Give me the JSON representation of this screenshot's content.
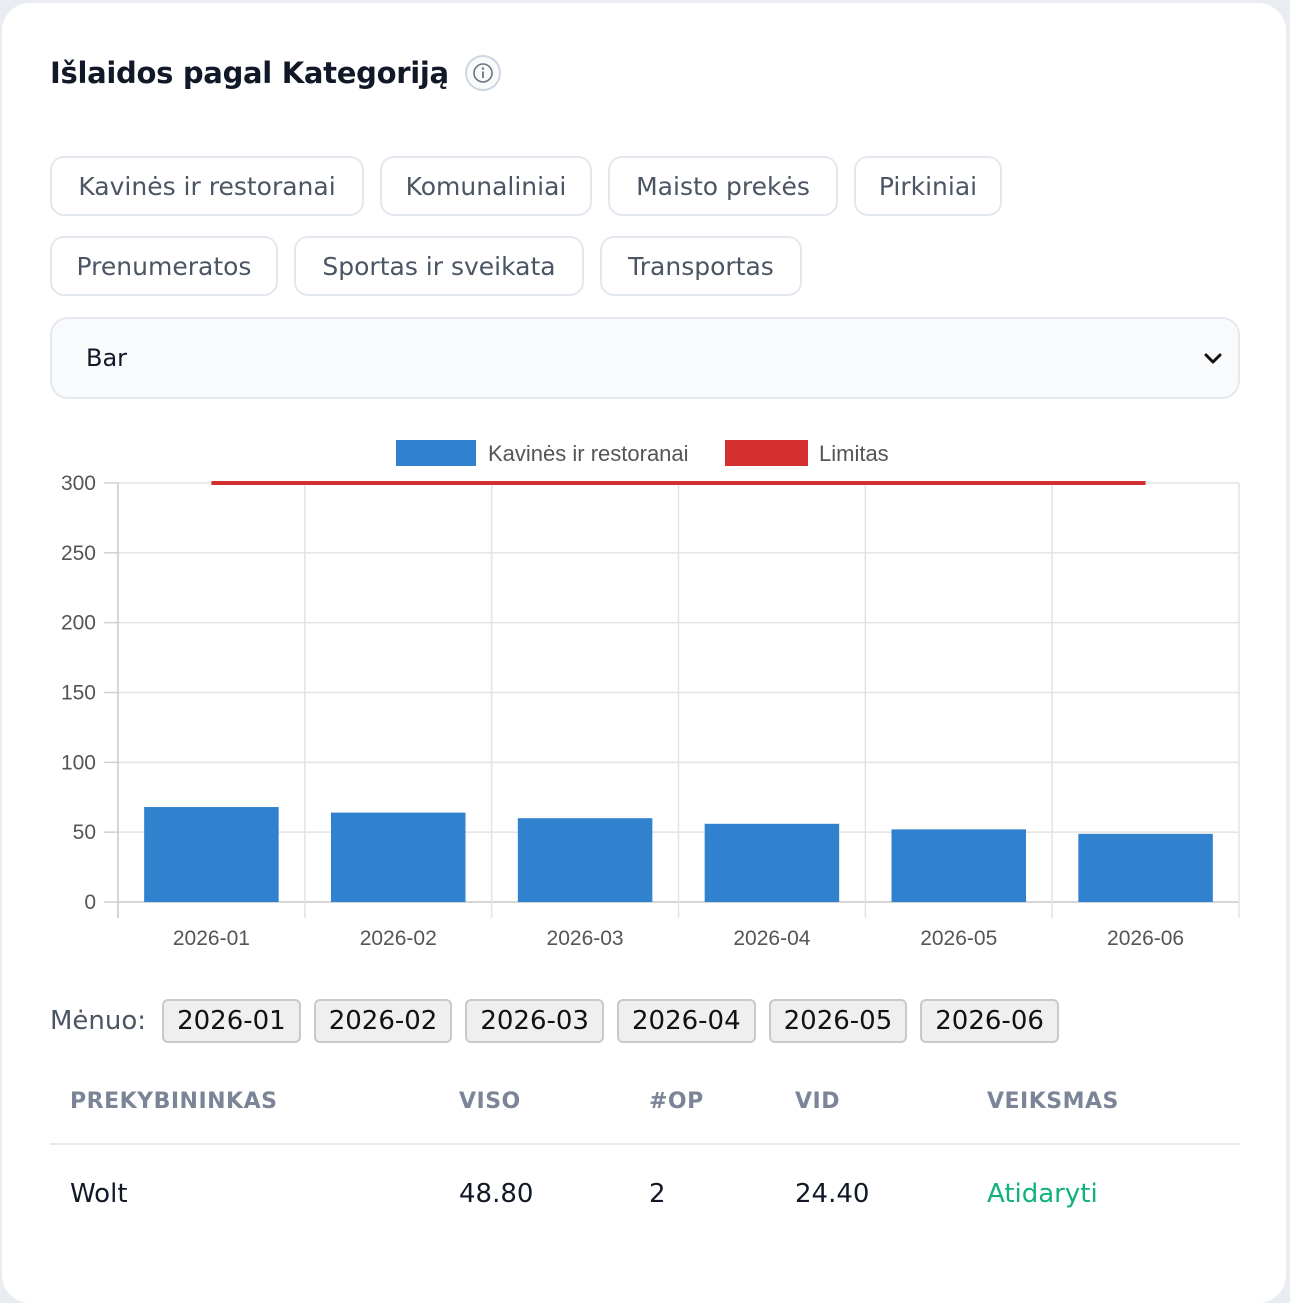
{
  "header": {
    "title": "Išlaidos pagal Kategoriją",
    "info_icon": "info-icon"
  },
  "categories": [
    "Kavinės ir restoranai",
    "Komunaliniai",
    "Maisto prekės",
    "Pirkiniai",
    "Prenumeratos",
    "Sportas ir sveikata",
    "Transportas"
  ],
  "chart_type_select": {
    "value": "Bar",
    "icon": "chevron-down-icon"
  },
  "chart_data": {
    "type": "bar",
    "categories": [
      "2026-01",
      "2026-02",
      "2026-03",
      "2026-04",
      "2026-05",
      "2026-06"
    ],
    "series": [
      {
        "name": "Kavinės ir restoranai",
        "values": [
          68,
          64,
          60,
          56,
          52,
          48.8
        ],
        "color": "#3182ce"
      },
      {
        "name": "Limitas",
        "values": [
          300,
          300,
          300,
          300,
          300,
          300
        ],
        "color": "#d32f2f",
        "kind": "line"
      }
    ],
    "ylim": [
      0,
      300
    ],
    "yticks": [
      0,
      50,
      100,
      150,
      200,
      250,
      300
    ],
    "grid": true,
    "legend": "top"
  },
  "month_filter": {
    "label": "Mėnuo:",
    "months": [
      "2026-01",
      "2026-02",
      "2026-03",
      "2026-04",
      "2026-05",
      "2026-06"
    ]
  },
  "table": {
    "headers": [
      "PREKYBININKAS",
      "VISO",
      "#OP",
      "VID",
      "VEIKSMAS"
    ],
    "rows": [
      {
        "merchant": "Wolt",
        "total": "48.80",
        "ops": "2",
        "avg": "24.40",
        "action": "Atidaryti"
      }
    ]
  }
}
